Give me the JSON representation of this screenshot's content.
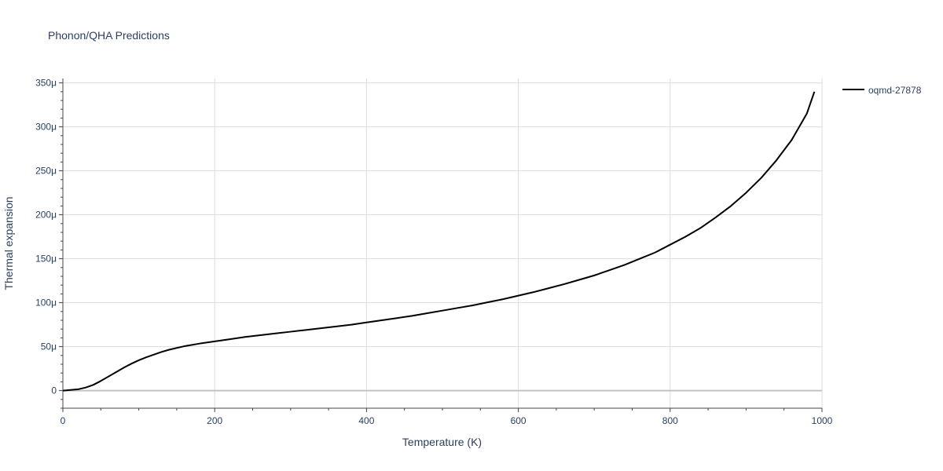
{
  "chart_data": {
    "type": "line",
    "title": "Phonon/QHA Predictions",
    "xlabel": "Temperature (K)",
    "ylabel": "Thermal expansion",
    "xlim": [
      0,
      1000
    ],
    "ylim": [
      -20,
      355
    ],
    "y_unit_suffix": "μ",
    "x_ticks": [
      0,
      200,
      400,
      600,
      800,
      1000
    ],
    "x_tick_labels": [
      "0",
      "200",
      "400",
      "600",
      "800",
      "1000"
    ],
    "y_ticks": [
      0,
      50,
      100,
      150,
      200,
      250,
      300,
      350
    ],
    "y_tick_labels": [
      "0",
      "50μ",
      "100μ",
      "150μ",
      "200μ",
      "250μ",
      "300μ",
      "350μ"
    ],
    "grid": true,
    "legend_position": "top-right",
    "series": [
      {
        "name": "oqmd-27878",
        "color": "#000000",
        "x": [
          0,
          20,
          30,
          40,
          50,
          60,
          70,
          80,
          90,
          100,
          110,
          120,
          130,
          140,
          150,
          160,
          170,
          180,
          200,
          220,
          240,
          260,
          280,
          300,
          320,
          340,
          360,
          380,
          400,
          420,
          440,
          460,
          480,
          500,
          520,
          540,
          560,
          580,
          600,
          620,
          640,
          660,
          680,
          700,
          720,
          740,
          760,
          780,
          800,
          820,
          840,
          860,
          880,
          900,
          920,
          940,
          960,
          980,
          990
        ],
        "y": [
          0,
          1.5,
          3.5,
          6.5,
          11,
          16,
          21,
          26,
          30.5,
          34.5,
          38,
          41,
          44,
          46.5,
          48.5,
          50.5,
          52,
          53.5,
          56,
          58.5,
          61,
          63,
          65,
          67,
          69,
          71,
          73,
          75,
          77.5,
          80,
          82.5,
          85,
          88,
          91,
          94,
          97,
          100.5,
          104,
          108,
          112,
          116.5,
          121,
          126,
          131,
          137,
          143,
          150,
          157,
          166,
          175,
          185,
          197,
          210,
          225,
          242,
          262,
          285,
          315,
          340
        ]
      }
    ]
  }
}
